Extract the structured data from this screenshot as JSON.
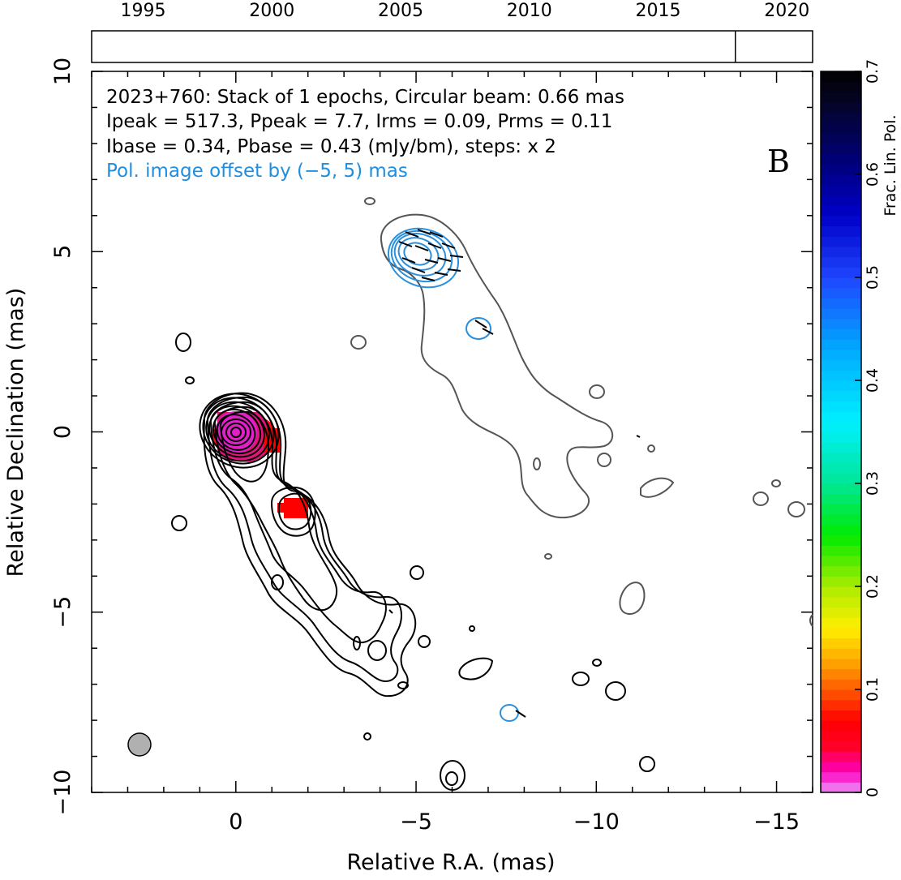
{
  "chart_data": {
    "type": "contour",
    "x_axis": {
      "label": "Relative R.A. (mas)",
      "range": [
        4,
        -16
      ],
      "ticks": [
        0,
        -5,
        -10,
        -15
      ],
      "tick_labels": [
        "0",
        "−5",
        "−10",
        "−15"
      ]
    },
    "y_axis": {
      "label": "Relative Declination (mas)",
      "range": [
        -10,
        10
      ],
      "ticks": [
        -10,
        -5,
        0,
        5,
        10
      ],
      "tick_labels": [
        "−10",
        "−5",
        "0",
        "5",
        "10"
      ]
    },
    "timeline": {
      "range": [
        1993.0,
        2021.0
      ],
      "ticks": [
        1995,
        2000,
        2005,
        2010,
        2015,
        2020
      ],
      "tick_labels": [
        "1995",
        "2000",
        "2005",
        "2010",
        "2015",
        "2020"
      ],
      "epochs": [
        2018.0
      ]
    },
    "colorbar": {
      "label": "Frac. Lin. Pol.",
      "range": [
        0,
        0.7
      ],
      "ticks": [
        0,
        0.1,
        0.2,
        0.3,
        0.4,
        0.5,
        0.6,
        0.7
      ],
      "tick_labels": [
        "0",
        "0.1",
        "0.2",
        "0.3",
        "0.4",
        "0.5",
        "0.6",
        "0.7"
      ]
    },
    "annotations": {
      "line1": "2023+760: Stack of 1 epochs, Circular beam: 0.66 mas",
      "line2": "Ipeak = 517.3, Ppeak = 7.7, Irms = 0.09, Prms = 0.11",
      "line3": "Ibase = 0.34, Pbase = 0.43 (mJy/bm), steps: x 2",
      "line4": "Pol. image offset by (−5, 5) mas",
      "panel_letter": "B"
    },
    "beam": {
      "diameter_mas": 0.66,
      "color": "#b0b0b0"
    },
    "pol_offset_mas": [
      -5,
      5
    ],
    "colors": {
      "total_intensity_contours": "#000000",
      "pol_intensity_contours": "#2a8fdc",
      "pol_offset_image": "#555555",
      "pol_note_text": "#1f8ee0"
    }
  }
}
